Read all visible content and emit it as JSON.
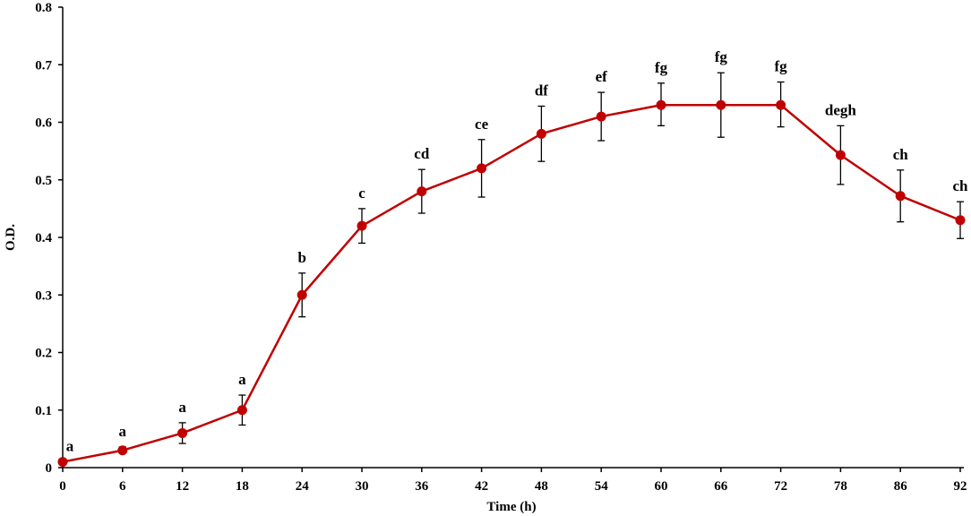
{
  "chart_data": {
    "type": "line",
    "xlabel": "Time (h)",
    "ylabel": "O.D.",
    "x": [
      0,
      6,
      12,
      18,
      24,
      30,
      36,
      42,
      48,
      54,
      60,
      66,
      72,
      78,
      86,
      92
    ],
    "ylim": [
      0,
      0.8
    ],
    "yticks": [
      "0",
      "0.1",
      "0.2",
      "0.3",
      "0.4",
      "0.5",
      "0.6",
      "0.7",
      "0.8"
    ],
    "grid": false,
    "series": [
      {
        "values": [
          0.01,
          0.03,
          0.06,
          0.1,
          0.3,
          0.42,
          0.48,
          0.52,
          0.58,
          0.61,
          0.63,
          0.63,
          0.63,
          0.543,
          0.472,
          0.43
        ],
        "error_upper": [
          0.01,
          0.036,
          0.078,
          0.126,
          0.338,
          0.45,
          0.518,
          0.57,
          0.628,
          0.652,
          0.668,
          0.686,
          0.67,
          0.594,
          0.517,
          0.462
        ],
        "error_lower": [
          0.01,
          0.026,
          0.042,
          0.074,
          0.262,
          0.39,
          0.442,
          0.47,
          0.532,
          0.568,
          0.594,
          0.574,
          0.592,
          0.492,
          0.427,
          0.398
        ],
        "labels": [
          "a",
          "a",
          "a",
          "a",
          "b",
          "c",
          "cd",
          "ce",
          "df",
          "ef",
          "fg",
          "fg",
          "fg",
          "degh",
          "ch",
          "ch"
        ],
        "color": "#c00000"
      }
    ]
  }
}
